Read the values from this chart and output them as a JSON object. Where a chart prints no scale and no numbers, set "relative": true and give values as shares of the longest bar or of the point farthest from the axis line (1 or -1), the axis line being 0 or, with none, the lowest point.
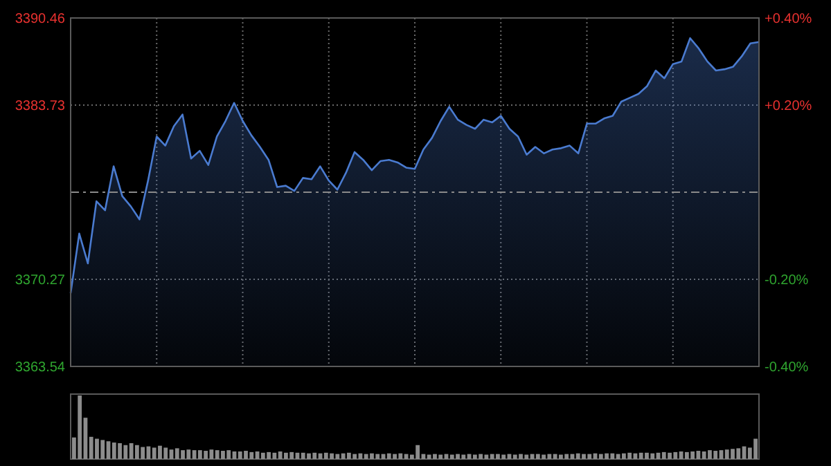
{
  "chart_data": [
    {
      "type": "area",
      "color": "#4a7bd0",
      "categories": [
        null,
        null,
        null,
        null,
        null,
        null,
        null,
        null,
        null,
        null,
        null,
        null,
        null,
        null,
        null,
        null,
        null,
        null,
        null,
        null,
        null,
        null,
        null,
        null,
        null,
        null,
        null,
        null,
        null,
        null,
        null,
        null,
        null,
        null,
        null,
        null,
        null,
        null,
        null,
        null,
        null,
        null,
        null,
        null,
        null,
        null,
        null,
        null,
        null,
        null,
        null,
        null,
        null,
        null,
        null,
        null,
        null,
        null,
        null,
        null,
        null,
        null,
        null,
        null,
        null,
        null,
        null,
        null,
        null,
        null,
        null,
        null,
        null,
        null,
        null,
        null,
        null,
        null,
        null,
        null,
        null
      ],
      "values": [
        3369.2,
        3373.8,
        3371.5,
        3376.3,
        3375.6,
        3379.0,
        3376.7,
        3375.9,
        3374.9,
        3377.9,
        3381.3,
        3380.6,
        3382.1,
        3383.0,
        3379.6,
        3380.2,
        3379.1,
        3381.3,
        3382.5,
        3383.9,
        3382.5,
        3381.4,
        3380.5,
        3379.5,
        3377.4,
        3377.5,
        3377.1,
        3378.1,
        3378.0,
        3379.0,
        3377.9,
        3377.2,
        3378.5,
        3380.1,
        3379.5,
        3378.7,
        3379.4,
        3379.5,
        3379.3,
        3378.9,
        3378.8,
        3380.3,
        3381.2,
        3382.5,
        3383.6,
        3382.6,
        3382.2,
        3381.9,
        3382.6,
        3382.4,
        3382.9,
        3381.9,
        3381.3,
        3379.9,
        3380.5,
        3380.0,
        3380.3,
        3380.4,
        3380.6,
        3380.0,
        3382.3,
        3382.3,
        3382.7,
        3382.9,
        3384.0,
        3384.3,
        3384.6,
        3385.2,
        3386.4,
        3385.8,
        3386.9,
        3387.1,
        3388.9,
        3388.1,
        3387.1,
        3386.4,
        3386.5,
        3386.7,
        3387.5,
        3388.5,
        3388.6
      ],
      "ylim": [
        3363.54,
        3390.46
      ],
      "yticks": [
        3363.54,
        3370.27,
        3383.73,
        3390.46
      ],
      "y2lim": [
        -0.4,
        0.4
      ],
      "y2ticks": [
        {
          "value": -0.4,
          "label": "-0.40%"
        },
        {
          "value": -0.2,
          "label": "-0.20%"
        },
        {
          "value": 0.2,
          "label": "+0.20%"
        },
        {
          "value": 0.4,
          "label": "+0.40%"
        }
      ],
      "ref_lines": [
        {
          "axis": "y",
          "value": 3377.0,
          "color": "#8a8a8a",
          "line_style": "dashed"
        }
      ],
      "grid": true
    },
    {
      "type": "bar",
      "relative": true,
      "color": "#8c8c8c",
      "categories": [
        null,
        null,
        null,
        null,
        null,
        null,
        null,
        null,
        null,
        null,
        null,
        null,
        null,
        null,
        null,
        null,
        null,
        null,
        null,
        null,
        null,
        null,
        null,
        null,
        null,
        null,
        null,
        null,
        null,
        null,
        null,
        null,
        null,
        null,
        null,
        null,
        null,
        null,
        null,
        null,
        null,
        null,
        null,
        null,
        null,
        null,
        null,
        null,
        null,
        null,
        null,
        null,
        null,
        null,
        null,
        null,
        null,
        null,
        null,
        null,
        null,
        null,
        null,
        null,
        null,
        null,
        null,
        null,
        null,
        null,
        null,
        null,
        null,
        null,
        null,
        null,
        null,
        null,
        null,
        null,
        null,
        null,
        null,
        null,
        null,
        null,
        null,
        null,
        null,
        null,
        null,
        null,
        null,
        null,
        null,
        null,
        null,
        null,
        null,
        null,
        null,
        null,
        null,
        null,
        null,
        null,
        null,
        null,
        null,
        null,
        null,
        null,
        null,
        null,
        null,
        null,
        null,
        null,
        null,
        null
      ],
      "values": [
        0.34,
        1.0,
        0.65,
        0.35,
        0.32,
        0.3,
        0.28,
        0.26,
        0.25,
        0.22,
        0.25,
        0.22,
        0.19,
        0.2,
        0.18,
        0.21,
        0.18,
        0.15,
        0.17,
        0.14,
        0.15,
        0.14,
        0.14,
        0.13,
        0.15,
        0.14,
        0.13,
        0.14,
        0.12,
        0.12,
        0.13,
        0.11,
        0.12,
        0.1,
        0.11,
        0.1,
        0.12,
        0.1,
        0.11,
        0.1,
        0.1,
        0.09,
        0.1,
        0.09,
        0.1,
        0.09,
        0.08,
        0.09,
        0.1,
        0.08,
        0.09,
        0.08,
        0.09,
        0.08,
        0.08,
        0.09,
        0.08,
        0.09,
        0.08,
        0.07,
        0.22,
        0.08,
        0.07,
        0.08,
        0.07,
        0.08,
        0.07,
        0.08,
        0.07,
        0.08,
        0.07,
        0.08,
        0.07,
        0.08,
        0.08,
        0.07,
        0.08,
        0.07,
        0.08,
        0.07,
        0.08,
        0.08,
        0.07,
        0.08,
        0.08,
        0.07,
        0.08,
        0.08,
        0.09,
        0.08,
        0.08,
        0.09,
        0.08,
        0.09,
        0.09,
        0.08,
        0.09,
        0.1,
        0.09,
        0.1,
        0.1,
        0.09,
        0.1,
        0.11,
        0.1,
        0.11,
        0.12,
        0.11,
        0.12,
        0.13,
        0.12,
        0.14,
        0.13,
        0.14,
        0.15,
        0.16,
        0.17,
        0.2,
        0.18,
        0.32
      ]
    }
  ]
}
